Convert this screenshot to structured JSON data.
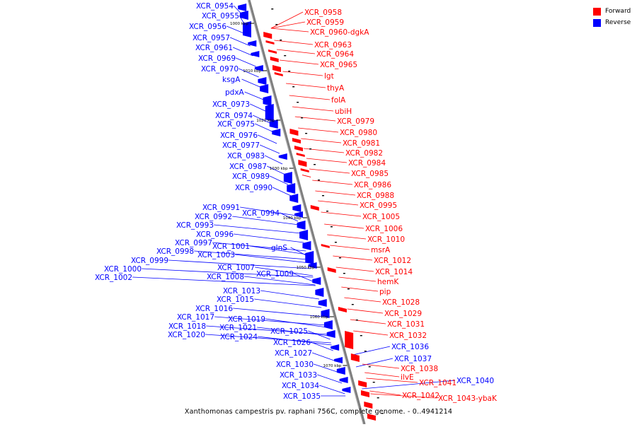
{
  "title": "Xanthomonas campestris pv. raphani 756C, complete genome. - 0..4941214",
  "legend": [
    {
      "label": "Forward",
      "color": "#ff0000"
    },
    {
      "label": "Reverse",
      "color": "#0000ff"
    }
  ],
  "colors": {
    "forward": "#ff0000",
    "reverse": "#0000ff",
    "backbone": "#7f7f7f"
  },
  "scale_ticks": [
    "1000 kbp",
    "1010 kbp",
    "1020 kbp",
    "1030 kbp",
    "1040 kbp",
    "1050 kbp",
    "1060 kbp",
    "1070 kbp"
  ],
  "reverse_labels": [
    "XCR_0954",
    "XCR_0955",
    "XCR_0956",
    "XCR_0957",
    "XCR_0961",
    "XCR_0969",
    "XCR_0970",
    "ksgA",
    "pdxA",
    "XCR_0973",
    "XCR_0974",
    "XCR_0975",
    "XCR_0976",
    "XCR_0977",
    "XCR_0983",
    "XCR_0987",
    "XCR_0989",
    "XCR_0990",
    "XCR_0991",
    "XCR_0994",
    "XCR_0992",
    "XCR_0993",
    "XCR_0996",
    "XCR_0997",
    "XCR_1001",
    "glnS",
    "XCR_0998",
    "XCR_1003",
    "XCR_0999",
    "XCR_1000",
    "XCR_1002",
    "XCR_1007",
    "XCR_1009",
    "XCR_1008",
    "XCR_1013",
    "XCR_1015",
    "XCR_1016",
    "XCR_1017",
    "XCR_1019",
    "XCR_1018",
    "XCR_1021",
    "XCR_1020",
    "XCR_1024",
    "XCR_1025",
    "XCR_1026",
    "XCR_1027",
    "XCR_1030",
    "XCR_1033",
    "XCR_1034",
    "XCR_1035",
    "XCR_1036",
    "XCR_1037",
    "XCR_1040"
  ],
  "forward_labels": [
    "XCR_0958",
    "XCR_0959",
    "XCR_0960-dgkA",
    "XCR_0963",
    "XCR_0964",
    "XCR_0965",
    "lgt",
    "thyA",
    "folA",
    "ubiH",
    "XCR_0979",
    "XCR_0980",
    "XCR_0981",
    "XCR_0982",
    "XCR_0984",
    "XCR_0985",
    "XCR_0986",
    "XCR_0988",
    "XCR_0995",
    "XCR_1005",
    "XCR_1006",
    "XCR_1010",
    "msrA",
    "XCR_1012",
    "XCR_1014",
    "hemK",
    "pip",
    "XCR_1028",
    "XCR_1029",
    "XCR_1031",
    "XCR_1032",
    "XCR_1038",
    "ilvE",
    "XCR_1041",
    "XCR_1042",
    "XCR_1043-ybaK"
  ]
}
